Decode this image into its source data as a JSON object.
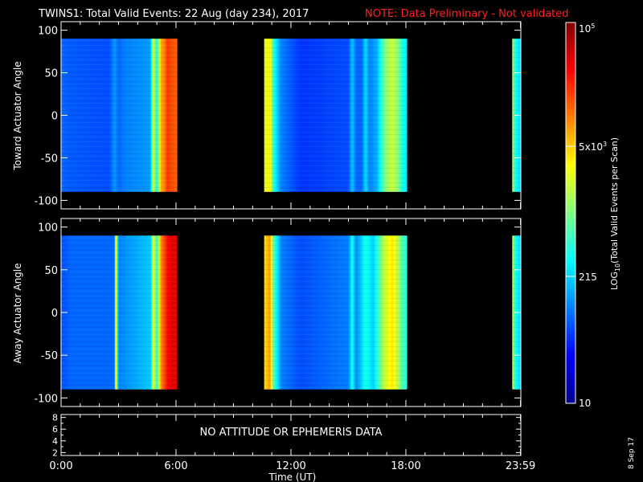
{
  "title": {
    "text": "TWINS1: Total Valid Events: 22 Aug (day 234), 2017",
    "note": "NOTE: Data Preliminary - Not validated",
    "note_color": "#ff2020"
  },
  "chart_data": [
    {
      "type": "heatmap",
      "panel": "toward",
      "ylabel": "Toward Actuator Angle",
      "ylim": [
        -110,
        110
      ],
      "y_ticks": [
        100,
        50,
        0,
        -50,
        -100
      ],
      "y_data_range": [
        -90,
        90
      ],
      "x_range_hours": [
        0,
        24
      ],
      "coverage_segments_hours": [
        [
          0,
          6.05
        ],
        [
          10.6,
          18.05
        ],
        [
          23.55,
          24
        ]
      ],
      "color_scale_log10": {
        "min": 1.0,
        "max": 5.0
      },
      "profile_hours_to_log10": [
        [
          0,
          1.9
        ],
        [
          0.5,
          1.85
        ],
        [
          2.5,
          1.8
        ],
        [
          2.8,
          2.1
        ],
        [
          3.0,
          1.9
        ],
        [
          3.3,
          2.0
        ],
        [
          4.6,
          2.1
        ],
        [
          4.7,
          2.3
        ],
        [
          4.8,
          3.5
        ],
        [
          5.0,
          2.5
        ],
        [
          5.2,
          3.8
        ],
        [
          5.4,
          4.0
        ],
        [
          5.55,
          4.3
        ],
        [
          5.8,
          4.2
        ],
        [
          6.05,
          4.1
        ],
        [
          10.6,
          3.3
        ],
        [
          10.9,
          3.6
        ],
        [
          11.1,
          2.6
        ],
        [
          11.5,
          2.0
        ],
        [
          12.5,
          1.7
        ],
        [
          15.0,
          1.8
        ],
        [
          15.2,
          2.3
        ],
        [
          15.4,
          1.9
        ],
        [
          15.7,
          1.9
        ],
        [
          15.9,
          2.4
        ],
        [
          16.1,
          2.0
        ],
        [
          16.5,
          2.2
        ],
        [
          16.9,
          3.0
        ],
        [
          17.3,
          3.3
        ],
        [
          17.6,
          3.0
        ],
        [
          17.8,
          2.6
        ],
        [
          18.05,
          2.4
        ],
        [
          23.55,
          3.3
        ],
        [
          23.7,
          2.6
        ],
        [
          24,
          2.3
        ]
      ]
    },
    {
      "type": "heatmap",
      "panel": "away",
      "ylabel": "Away Actuator Angle",
      "ylim": [
        -110,
        110
      ],
      "y_ticks": [
        100,
        50,
        0,
        -50,
        -100
      ],
      "y_data_range": [
        -90,
        90
      ],
      "x_range_hours": [
        0,
        24
      ],
      "coverage_segments_hours": [
        [
          0,
          6.05
        ],
        [
          10.6,
          18.05
        ],
        [
          23.55,
          24
        ]
      ],
      "color_scale_log10": {
        "min": 1.0,
        "max": 5.0
      },
      "profile_hours_to_log10": [
        [
          0,
          1.8
        ],
        [
          0.5,
          1.9
        ],
        [
          2.8,
          1.9
        ],
        [
          2.85,
          3.8
        ],
        [
          3.0,
          2.0
        ],
        [
          3.5,
          2.1
        ],
        [
          4.7,
          2.3
        ],
        [
          4.8,
          3.6
        ],
        [
          5.0,
          2.6
        ],
        [
          5.2,
          3.9
        ],
        [
          5.5,
          4.4
        ],
        [
          5.7,
          4.6
        ],
        [
          6.05,
          4.6
        ],
        [
          10.6,
          3.6
        ],
        [
          10.9,
          3.9
        ],
        [
          11.1,
          2.8
        ],
        [
          11.5,
          2.0
        ],
        [
          12.5,
          1.8
        ],
        [
          15.0,
          2.0
        ],
        [
          15.2,
          2.6
        ],
        [
          15.4,
          2.0
        ],
        [
          15.9,
          2.6
        ],
        [
          16.3,
          2.3
        ],
        [
          16.9,
          3.3
        ],
        [
          17.3,
          3.6
        ],
        [
          17.6,
          3.2
        ],
        [
          17.8,
          2.8
        ],
        [
          18.05,
          2.6
        ],
        [
          23.55,
          3.4
        ],
        [
          23.7,
          2.6
        ],
        [
          24,
          2.3
        ]
      ]
    },
    {
      "type": "line",
      "panel": "ephemeris",
      "ylim": [
        1.5,
        8.5
      ],
      "y_ticks": [
        8,
        6,
        4,
        2
      ],
      "y_minor_ticks": [
        7,
        5,
        3
      ],
      "message": "NO ATTITUDE OR EPHEMERIS DATA",
      "xlabel": "Time (UT)",
      "x_tick_labels": [
        "0:00",
        "6:00",
        "12:00",
        "18:00",
        "23:59"
      ],
      "x_ticks_hours": [
        0,
        6,
        12,
        18,
        23.983
      ]
    }
  ],
  "colorbar": {
    "label": "LOG10(Total Valid Events per Scan)",
    "label_main": "LOG",
    "label_sub": "10",
    "label_rest": "(Total Valid Events per Scan)",
    "tick_labels": [
      {
        "text": "10",
        "log10": 1.0
      },
      {
        "text": "215",
        "log10": 2.333
      },
      {
        "text": "5x103",
        "base": "5x10",
        "exp": "3",
        "log10": 3.699
      },
      {
        "text": "105",
        "base": "10",
        "exp": "5",
        "log10": 5.0
      }
    ],
    "range_log10": [
      1.0,
      5.0
    ]
  },
  "footer": {
    "date_stamp": "8 Sep 17"
  }
}
